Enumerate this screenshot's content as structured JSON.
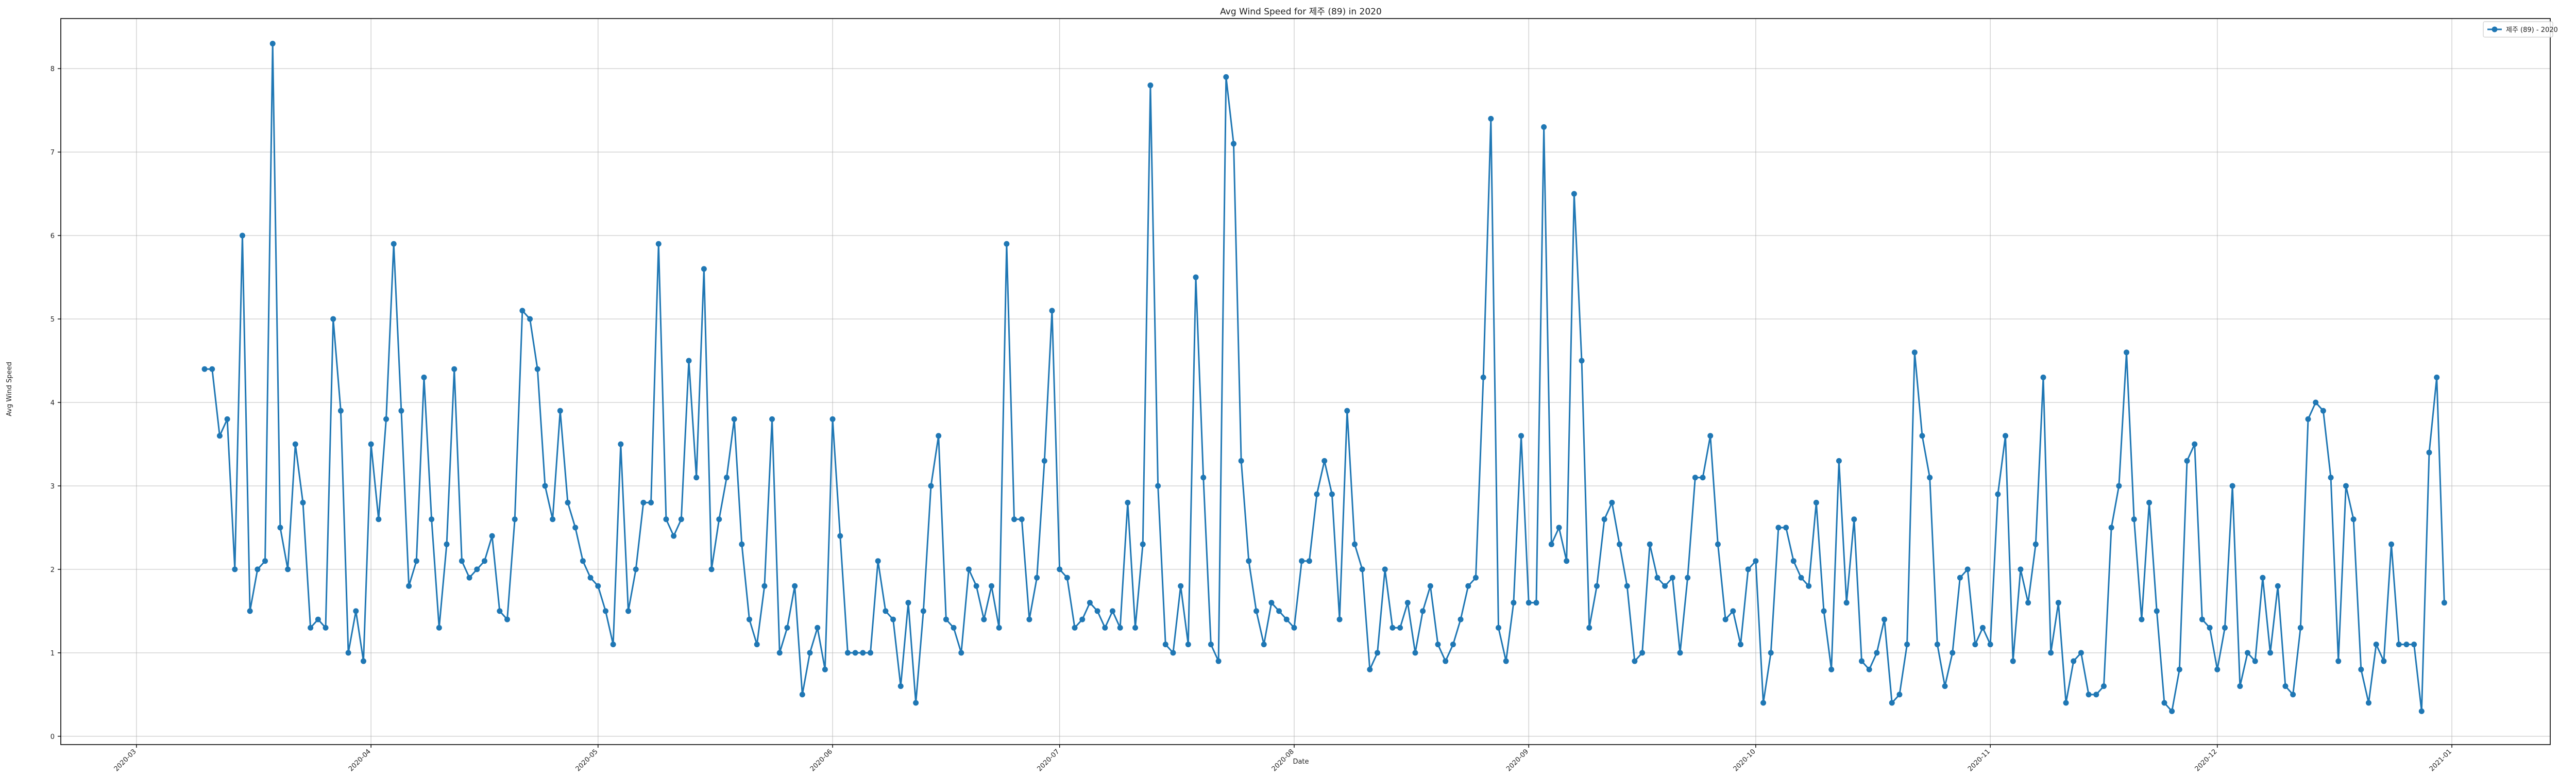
{
  "chart_data": {
    "type": "line",
    "title": "Avg Wind Speed for 제주 (89) in 2020",
    "xlabel": "Date",
    "ylabel": "Avg Wind Speed",
    "grid": true,
    "legend_position": "top-right",
    "xlim": [
      "2020-02-20",
      "2021-01-14"
    ],
    "ylim": [
      -0.1,
      8.6
    ],
    "yticks": [
      0,
      1,
      2,
      3,
      4,
      5,
      6,
      7,
      8
    ],
    "xticks": [
      "2020-03",
      "2020-04",
      "2020-05",
      "2020-06",
      "2020-07",
      "2020-08",
      "2020-09",
      "2020-10",
      "2020-11",
      "2020-12",
      "2021-01"
    ],
    "xtick_dates": [
      "2020-03-01",
      "2020-04-01",
      "2020-05-01",
      "2020-06-01",
      "2020-07-01",
      "2020-08-01",
      "2020-09-01",
      "2020-10-01",
      "2020-11-01",
      "2020-12-01",
      "2021-01-01"
    ],
    "start_date": "2020-03-10",
    "series": [
      {
        "name": "제주 (89) - 2020",
        "color": "#1f77b4",
        "marker": "circle",
        "values": [
          4.4,
          4.4,
          3.6,
          3.8,
          2.0,
          6.0,
          1.5,
          2.0,
          2.1,
          8.3,
          2.5,
          2.0,
          3.5,
          2.8,
          1.3,
          1.4,
          1.3,
          5.0,
          3.9,
          1.0,
          1.5,
          0.9,
          3.5,
          2.6,
          3.8,
          5.9,
          3.9,
          1.8,
          2.1,
          4.3,
          2.6,
          1.3,
          2.3,
          4.4,
          2.1,
          1.9,
          2.0,
          2.1,
          2.4,
          1.5,
          1.4,
          2.6,
          5.1,
          5.0,
          4.4,
          3.0,
          2.6,
          3.9,
          2.8,
          2.5,
          2.1,
          1.9,
          1.8,
          1.5,
          1.1,
          3.5,
          1.5,
          2.0,
          2.8,
          2.8,
          5.9,
          2.6,
          2.4,
          2.6,
          4.5,
          3.1,
          5.6,
          2.0,
          2.6,
          3.1,
          3.8,
          2.3,
          1.4,
          1.1,
          1.8,
          3.8,
          1.0,
          1.3,
          1.8,
          0.5,
          1.0,
          1.3,
          0.8,
          3.8,
          2.4,
          1.0,
          1.0,
          1.0,
          1.0,
          2.1,
          1.5,
          1.4,
          0.6,
          1.6,
          0.4,
          1.5,
          3.0,
          3.6,
          1.4,
          1.3,
          1.0,
          2.0,
          1.8,
          1.4,
          1.8,
          1.3,
          5.9,
          2.6,
          2.6,
          1.4,
          1.9,
          3.3,
          5.1,
          2.0,
          1.9,
          1.3,
          1.4,
          1.6,
          1.5,
          1.3,
          1.5,
          1.3,
          2.8,
          1.3,
          2.3,
          7.8,
          3.0,
          1.1,
          1.0,
          1.8,
          1.1,
          5.5,
          3.1,
          1.1,
          0.9,
          7.9,
          7.1,
          3.3,
          2.1,
          1.5,
          1.1,
          1.6,
          1.5,
          1.4,
          1.3,
          2.1,
          2.1,
          2.9,
          3.3,
          2.9,
          1.4,
          3.9,
          2.3,
          2.0,
          0.8,
          1.0,
          2.0,
          1.3,
          1.3,
          1.6,
          1.0,
          1.5,
          1.8,
          1.1,
          0.9,
          1.1,
          1.4,
          1.8,
          1.9,
          4.3,
          7.4,
          1.3,
          0.9,
          1.6,
          3.6,
          1.6,
          1.6,
          7.3,
          2.3,
          2.5,
          2.1,
          6.5,
          4.5,
          1.3,
          1.8,
          2.6,
          2.8,
          2.3,
          1.8,
          0.9,
          1.0,
          2.3,
          1.9,
          1.8,
          1.9,
          1.0,
          1.9,
          3.1,
          3.1,
          3.6,
          2.3,
          1.4,
          1.5,
          1.1,
          2.0,
          2.1,
          0.4,
          1.0,
          2.5,
          2.5,
          2.1,
          1.9,
          1.8,
          2.8,
          1.5,
          0.8,
          3.3,
          1.6,
          2.6,
          0.9,
          0.8,
          1.0,
          1.4,
          0.4,
          0.5,
          1.1,
          4.6,
          3.6,
          3.1,
          1.1,
          0.6,
          1.0,
          1.9,
          2.0,
          1.1,
          1.3,
          1.1,
          2.9,
          3.6,
          0.9,
          2.0,
          1.6,
          2.3,
          4.3,
          1.0,
          1.6,
          0.4,
          0.9,
          1.0,
          0.5,
          0.5,
          0.6,
          2.5,
          3.0,
          4.6,
          2.6,
          1.4,
          2.8,
          1.5,
          0.4,
          0.3,
          0.8,
          3.3,
          3.5,
          1.4,
          1.3,
          0.8,
          1.3,
          3.0,
          0.6,
          1.0,
          0.9,
          1.9,
          1.0,
          1.8,
          0.6,
          0.5,
          1.3,
          3.8,
          4.0,
          3.9,
          3.1,
          0.9,
          3.0,
          2.6,
          0.8,
          0.4,
          1.1,
          0.9,
          2.3,
          1.1,
          1.1,
          1.1,
          0.3,
          3.4,
          4.3,
          1.6
        ]
      }
    ]
  }
}
